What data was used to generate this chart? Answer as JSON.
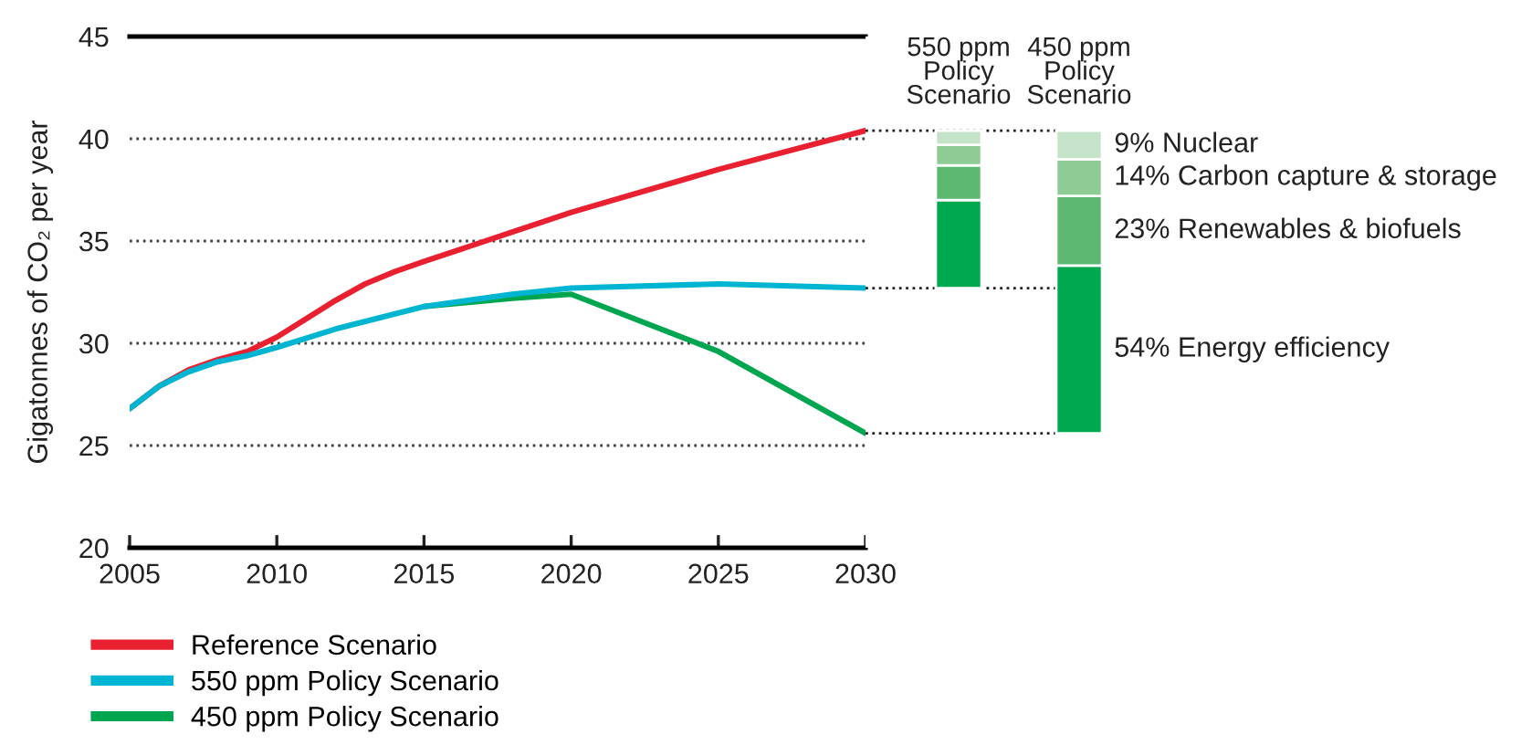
{
  "chart_data": [
    {
      "type": "line",
      "ylabel": "Gigatonnes of CO₂ per year",
      "xlim": [
        2005,
        2030
      ],
      "xticks": [
        2005,
        2010,
        2015,
        2020,
        2025,
        2030
      ],
      "ylim": [
        20,
        45
      ],
      "yticks": [
        20,
        25,
        30,
        35,
        40,
        45
      ],
      "grid": "y",
      "legend": "bottom",
      "series": [
        {
          "name": "Reference Scenario",
          "color": "#e8202f",
          "x": [
            2005,
            2006,
            2007,
            2008,
            2009,
            2010,
            2011,
            2012,
            2013,
            2014,
            2015,
            2020,
            2025,
            2030
          ],
          "values": [
            26.8,
            27.9,
            28.7,
            29.2,
            29.6,
            30.3,
            31.2,
            32.1,
            32.9,
            33.5,
            34.0,
            36.4,
            38.5,
            40.4
          ]
        },
        {
          "name": "550 ppm Policy Scenario",
          "color": "#00b5d1",
          "x": [
            2005,
            2006,
            2007,
            2008,
            2009,
            2010,
            2012,
            2015,
            2018,
            2020,
            2025,
            2030
          ],
          "values": [
            26.8,
            27.9,
            28.6,
            29.1,
            29.4,
            29.8,
            30.7,
            31.8,
            32.4,
            32.7,
            32.9,
            32.7
          ]
        },
        {
          "name": "450 ppm Policy Scenario",
          "color": "#00a54f",
          "x": [
            2015,
            2018,
            2020,
            2025,
            2030
          ],
          "values": [
            31.8,
            32.2,
            32.4,
            29.6,
            25.6
          ]
        }
      ]
    },
    {
      "type": "bar",
      "categories": [
        "550 ppm\nPolicy\nScenario",
        "450 ppm\nPolicy\nScenario"
      ],
      "ylim": [
        20,
        45
      ],
      "tick_labels": "x",
      "ref_lines": [
        {
          "axis": "y",
          "value": 40.4,
          "line_style": "dotted"
        },
        {
          "axis": "y",
          "value": 32.7,
          "line_style": "dotted"
        },
        {
          "axis": "y",
          "value": 25.6,
          "line_style": "dotted"
        }
      ],
      "series": [
        {
          "name": "54% Energy efficiency",
          "color": "#00a84f",
          "base": [
            32.7,
            25.6
          ],
          "values": [
            4.3,
            8.2
          ]
        },
        {
          "name": "23% Renewables & biofuels",
          "color": "#5db872",
          "base": [
            37.0,
            33.8
          ],
          "values": [
            1.7,
            3.4
          ]
        },
        {
          "name": "14% Carbon capture & storage",
          "color": "#8fcc95",
          "base": [
            38.7,
            37.2
          ],
          "values": [
            1.0,
            1.8
          ]
        },
        {
          "name": "9% Nuclear",
          "color": "#c5e3c8",
          "base": [
            39.7,
            39.0
          ],
          "values": [
            0.7,
            1.4
          ]
        }
      ]
    }
  ]
}
